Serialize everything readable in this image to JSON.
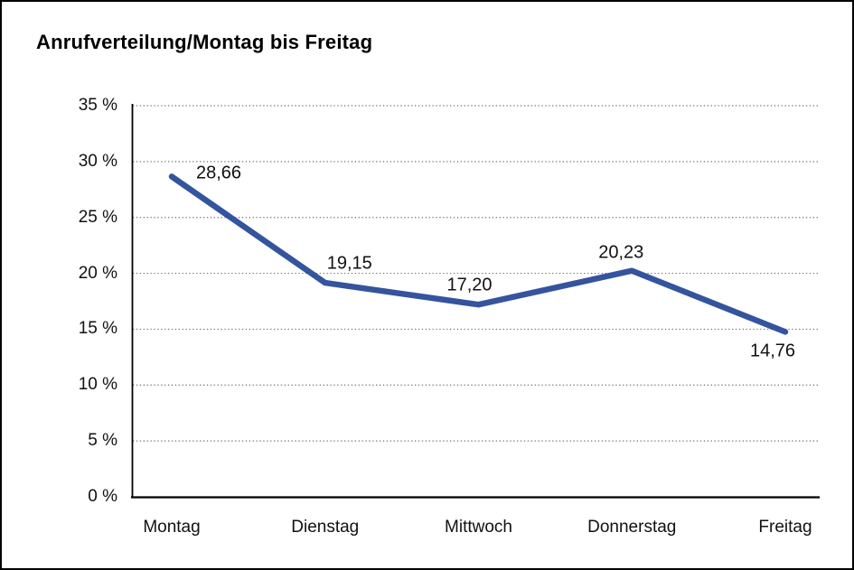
{
  "window": {
    "title": "Anrufverteilung/Montag bis Freitag"
  },
  "chart_data": {
    "type": "line",
    "title": "Anrufverteilung/Montag bis Freitag",
    "categories": [
      "Montag",
      "Dienstag",
      "Mittwoch",
      "Donnerstag",
      "Freitag"
    ],
    "series": [
      {
        "name": "Anrufverteilung",
        "values": [
          28.66,
          19.15,
          17.2,
          20.23,
          14.76
        ]
      }
    ],
    "point_labels": [
      "28,66",
      "19,15",
      "17,20",
      "20,23",
      "14,76"
    ],
    "y_ticks": [
      "0 %",
      "5 %",
      "10 %",
      "15 %",
      "20 %",
      "25 %",
      "30 %",
      "35 %"
    ],
    "y_tick_values": [
      0,
      5,
      10,
      15,
      20,
      25,
      30,
      35
    ],
    "ylim": [
      0,
      35
    ],
    "xlabel": "",
    "ylabel": "",
    "grid": "dotted-horizontal",
    "legend": "none",
    "line_color": "#34549E",
    "axis_color": "#000000",
    "grid_color": "#707070",
    "label_decimal_separator": ","
  }
}
